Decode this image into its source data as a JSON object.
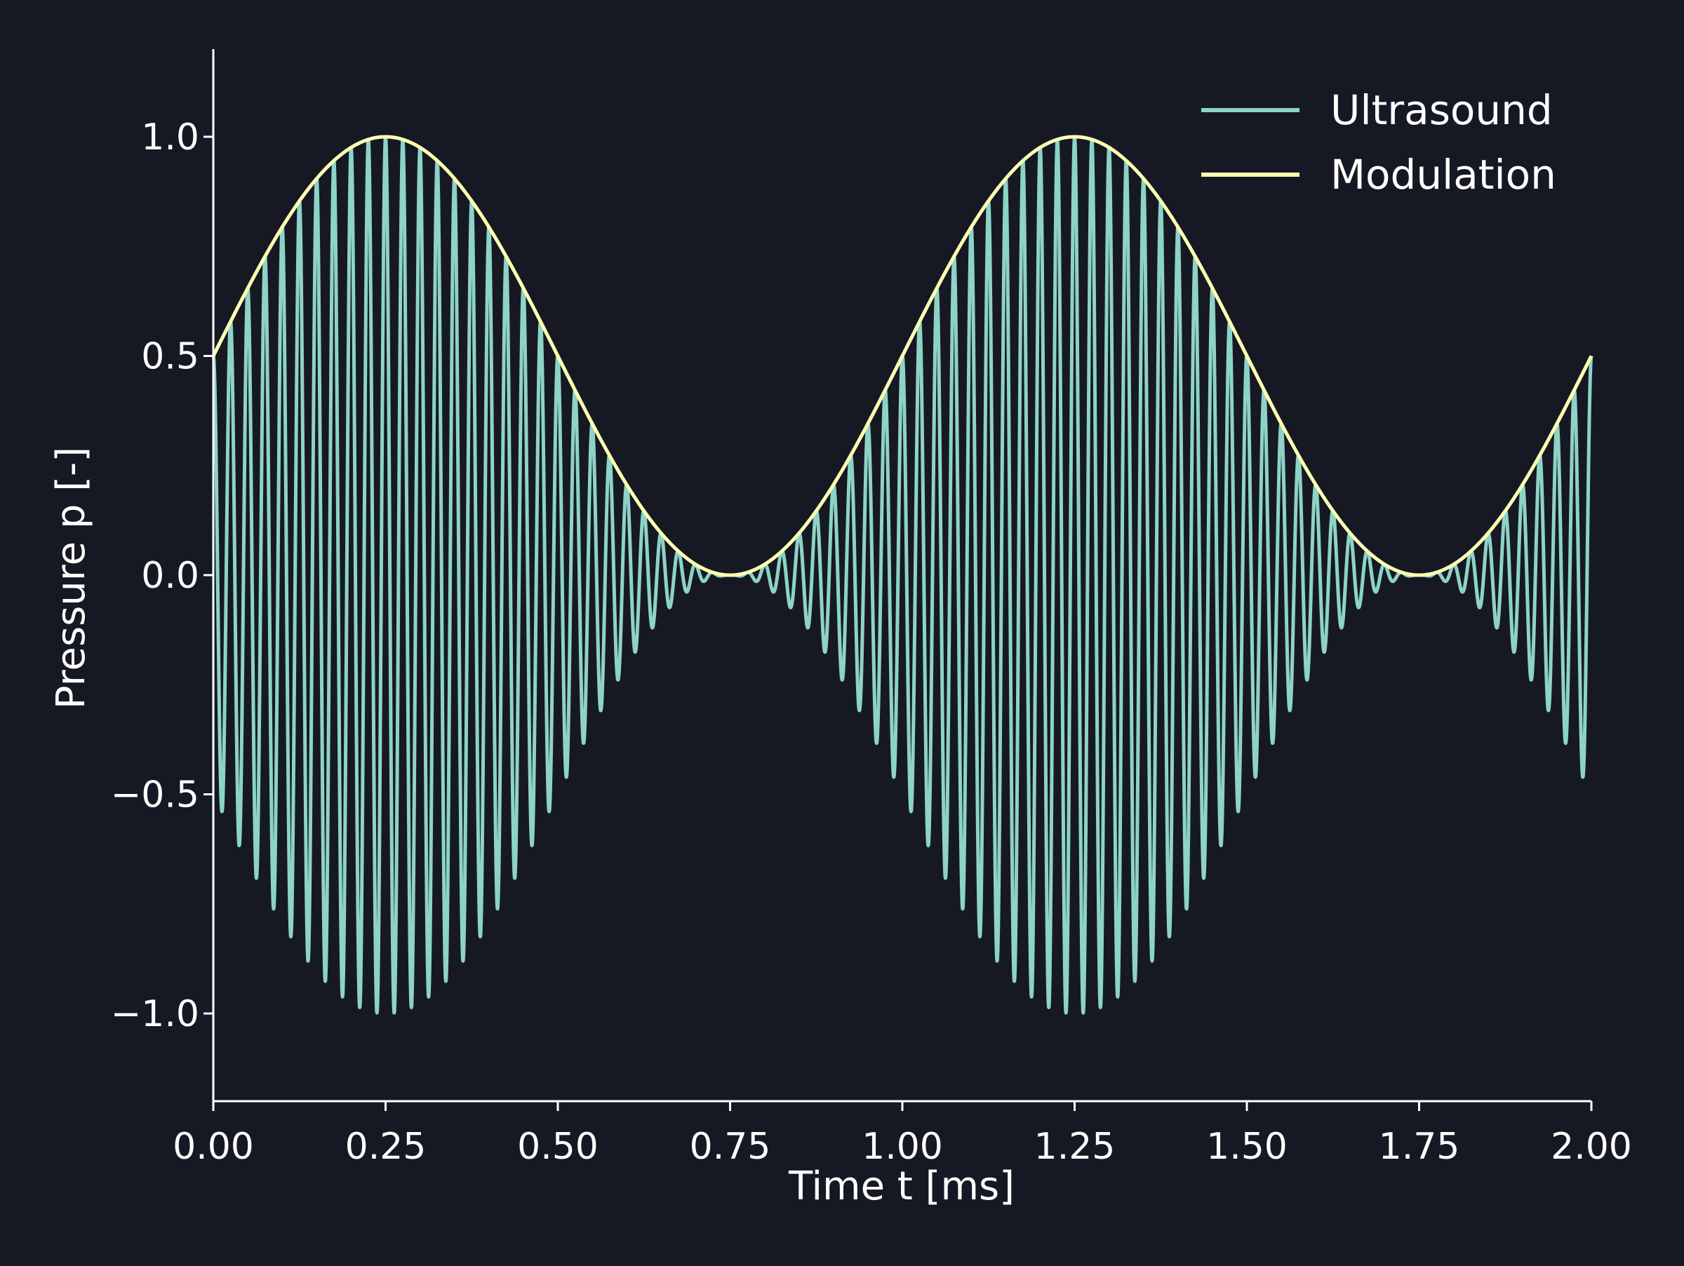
{
  "chart_data": {
    "type": "line",
    "xlabel": "Time t [ms]",
    "ylabel": "Pressure p [-]",
    "xlim": [
      0.0,
      2.0
    ],
    "ylim": [
      -1.2,
      1.2
    ],
    "x_ticks": [
      "0.00",
      "0.25",
      "0.50",
      "0.75",
      "1.00",
      "1.25",
      "1.50",
      "1.75",
      "2.00"
    ],
    "y_ticks": [
      "−1.0",
      "−0.5",
      "0.0",
      "0.5",
      "1.0"
    ],
    "x_tick_values": [
      0.0,
      0.25,
      0.5,
      0.75,
      1.0,
      1.25,
      1.5,
      1.75,
      2.0
    ],
    "y_tick_values": [
      -1.0,
      -0.5,
      0.0,
      0.5,
      1.0
    ],
    "grid": false,
    "legend_position": "top-right",
    "colors": {
      "background": "#161923",
      "axis": "#ffffff",
      "ultrasound": "#8dd3c7",
      "modulation": "#ffffb3"
    },
    "series": [
      {
        "name": "Ultrasound",
        "description_values": "p(t) = 0.5*(1 + sin(2π·1.0·t)) · cos(2π·40·t), t in ms",
        "carrier_frequency_khz": 40,
        "envelope": "Modulation"
      },
      {
        "name": "Modulation",
        "values_formula": "0.5*(1 + sin(2π·1.0·t))",
        "modulation_frequency_khz": 1.0,
        "x": [
          0.0,
          0.25,
          0.5,
          0.75,
          1.0,
          1.25,
          1.5,
          1.75,
          2.0
        ],
        "y": [
          0.5,
          1.0,
          0.5,
          0.0,
          0.5,
          1.0,
          0.5,
          0.0,
          0.5
        ]
      }
    ]
  }
}
